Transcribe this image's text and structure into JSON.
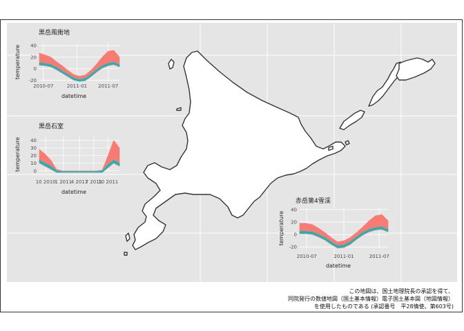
{
  "colors": {
    "panel_bg": "#e5e5e5",
    "grid": "#ffffff",
    "land_fill": "#ffffff",
    "land_stroke": "#333333",
    "max_series": "#f8766d",
    "min_series": "#00bfc4"
  },
  "attribution": {
    "line1": "この地図は、国土地理院長の承認を得て、",
    "line2": "同院発行の数値地図（国土基本情報）電子国土基本図（地図情報）",
    "line3": "を使用したものである (承認番号　平28情使、第603号)"
  },
  "chart_data": [
    {
      "type": "area",
      "title": "黒岳風衝地",
      "xlabel": "datetime",
      "ylabel": "temperature",
      "x_ticks": [
        "2010-07",
        "2011-01",
        "2011-07"
      ],
      "y_ticks": [
        "40",
        "20",
        "0",
        "-20"
      ],
      "ylim": [
        -22,
        45
      ],
      "x_months": [
        0,
        1,
        2,
        3,
        4,
        5,
        6,
        7,
        8,
        9,
        10,
        11,
        12,
        13,
        14
      ],
      "series": [
        {
          "values": [
            27,
            24,
            20,
            12,
            5,
            -3,
            -10,
            -13,
            -11,
            -3,
            8,
            20,
            30,
            32,
            20
          ]
        },
        {
          "values": [
            10,
            9,
            7,
            2,
            -4,
            -10,
            -16,
            -19,
            -17,
            -10,
            -2,
            5,
            9,
            11,
            7
          ]
        }
      ]
    },
    {
      "type": "area",
      "title": "黒岳石室",
      "xlabel": "datetime",
      "ylabel": "temperature",
      "x_ticks": [
        "10 2010",
        "1 2011",
        "4 2011",
        "7 2011",
        "10 2011"
      ],
      "y_ticks": [
        "40",
        "30",
        "20",
        "10",
        "0"
      ],
      "ylim": [
        -2,
        45
      ],
      "x_months": [
        0,
        1,
        2,
        3,
        4,
        5,
        6,
        7,
        8,
        9,
        10,
        11,
        12,
        13,
        14
      ],
      "series": [
        {
          "values": [
            28,
            22,
            14,
            2,
            0,
            0,
            0,
            0,
            0,
            0,
            0,
            1,
            20,
            40,
            30
          ]
        },
        {
          "values": [
            14,
            10,
            6,
            0,
            -1,
            -1,
            -1,
            -1,
            -1,
            -1,
            -1,
            0,
            8,
            14,
            10
          ]
        }
      ]
    },
    {
      "type": "area",
      "title": "赤岳第4雪渓",
      "xlabel": "datetime",
      "ylabel": "temperature",
      "x_ticks": [
        "2010-07",
        "2011-01",
        "2011-07"
      ],
      "y_ticks": [
        "40",
        "20",
        "0",
        "-20"
      ],
      "ylim": [
        -22,
        42
      ],
      "x_months": [
        0,
        1,
        2,
        3,
        4,
        5,
        6,
        7,
        8,
        9,
        10,
        11,
        12,
        13,
        14
      ],
      "series": [
        {
          "values": [
            18,
            18,
            16,
            10,
            3,
            -5,
            -12,
            -10,
            -5,
            3,
            12,
            22,
            30,
            32,
            22
          ]
        },
        {
          "values": [
            5,
            5,
            4,
            0,
            -5,
            -12,
            -18,
            -17,
            -12,
            -4,
            3,
            8,
            11,
            12,
            8
          ]
        }
      ]
    }
  ]
}
